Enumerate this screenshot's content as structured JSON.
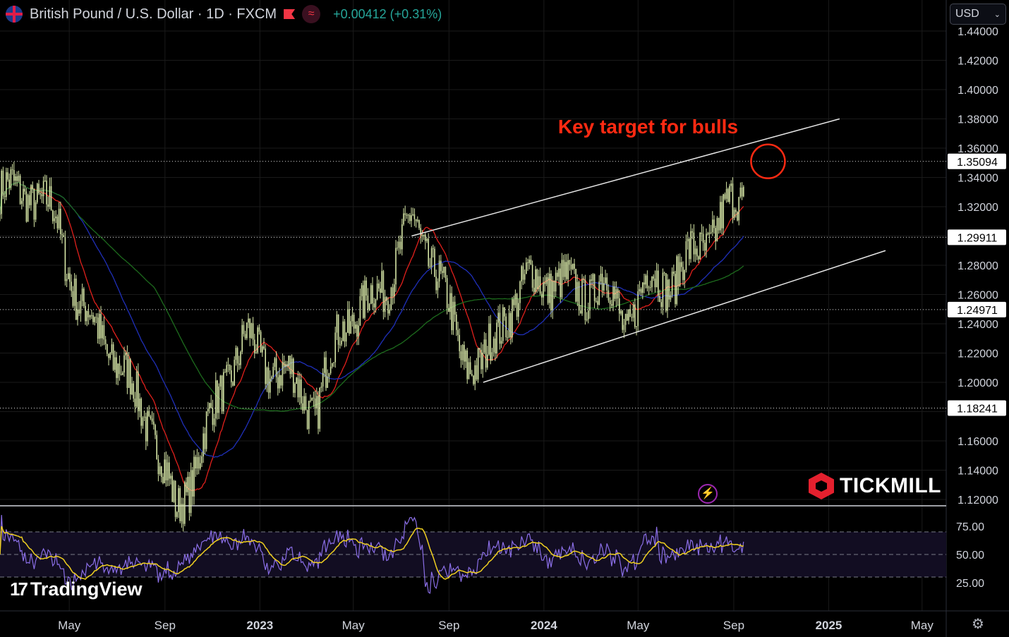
{
  "header": {
    "symbol_title": "British Pound / U.S. Dollar · 1D · FXCM",
    "change": "+0.00412 (+0.31%)",
    "currency": "USD",
    "flag_icon": "uk-flag-icon",
    "icons": [
      "market-status-flag-icon",
      "wave-icon",
      "settings-gear-icon",
      "bolt-icon",
      "chevron-down-icon"
    ]
  },
  "colors": {
    "background": "#000000",
    "grid": "#1a1a1a",
    "candle": "#d6e6a6",
    "ma_fast": "#e0201c",
    "ma_mid": "#1f2fb8",
    "ma_slow": "#1d6b1d",
    "channel": "#e6e6e6",
    "annotation": "#ff2a12",
    "rsi": "#8a6ee6",
    "rsi_signal": "#f0d020",
    "positive": "#26a69a"
  },
  "annotation": "Key target for bulls",
  "brand": {
    "logo_text": "TICKMILL",
    "tv_text": "TradingView",
    "tv_mark": "17"
  },
  "chart_data": [
    {
      "type": "candlestick",
      "title": "British Pound / U.S. Dollar · 1D · FXCM",
      "x_labels": [
        "May",
        "Sep",
        "2023",
        "May",
        "Sep",
        "2024",
        "May",
        "Sep",
        "2025",
        "May"
      ],
      "x_range": [
        "2022-02",
        "2025-06"
      ],
      "ylim": [
        1.12,
        1.44
      ],
      "y_ticks": [
        "1.44000",
        "1.42000",
        "1.40000",
        "1.38000",
        "1.36000",
        "1.34000",
        "1.32000",
        "1.30000",
        "1.28000",
        "1.26000",
        "1.24000",
        "1.22000",
        "1.20000",
        "1.18000",
        "1.16000",
        "1.14000",
        "1.12000"
      ],
      "price_levels": [
        "1.35094",
        "1.29911",
        "1.24971",
        "1.18241"
      ],
      "close_path": [
        [
          "2022-03",
          1.33
        ],
        [
          "2022-04",
          1.31
        ],
        [
          "2022-05",
          1.25
        ],
        [
          "2022-06",
          1.23
        ],
        [
          "2022-07",
          1.2
        ],
        [
          "2022-08",
          1.17
        ],
        [
          "2022-09",
          1.11
        ],
        [
          "2022-10",
          1.15
        ],
        [
          "2022-11",
          1.2
        ],
        [
          "2022-12",
          1.23
        ],
        [
          "2023-01",
          1.21
        ],
        [
          "2023-02",
          1.2
        ],
        [
          "2023-03",
          1.18
        ],
        [
          "2023-04",
          1.24
        ],
        [
          "2023-05",
          1.25
        ],
        [
          "2023-06",
          1.27
        ],
        [
          "2023-07",
          1.31
        ],
        [
          "2023-08",
          1.28
        ],
        [
          "2023-09",
          1.22
        ],
        [
          "2023-10",
          1.21
        ],
        [
          "2023-11",
          1.25
        ],
        [
          "2023-12",
          1.27
        ],
        [
          "2024-01",
          1.27
        ],
        [
          "2024-02",
          1.26
        ],
        [
          "2024-03",
          1.27
        ],
        [
          "2024-04",
          1.24
        ],
        [
          "2024-05",
          1.27
        ],
        [
          "2024-06",
          1.27
        ],
        [
          "2024-07",
          1.29
        ],
        [
          "2024-08",
          1.31
        ],
        [
          "2024-09",
          1.33
        ]
      ],
      "moving_averages": [
        "fast",
        "mid",
        "slow"
      ],
      "channel": {
        "upper": [
          [
            "2023-07",
            1.3
          ],
          [
            "2025-01",
            1.38
          ]
        ],
        "lower": [
          [
            "2023-10",
            1.2
          ],
          [
            "2025-03",
            1.29
          ]
        ]
      },
      "target": {
        "date": "2024-10",
        "price": 1.35094,
        "label": "Key target for bulls"
      }
    },
    {
      "type": "line",
      "title": "",
      "ylim": [
        10,
        85
      ],
      "y_ticks": [
        "75.00",
        "50.00",
        "25.00"
      ],
      "bands": [
        70,
        50,
        30
      ],
      "series": []
    }
  ]
}
